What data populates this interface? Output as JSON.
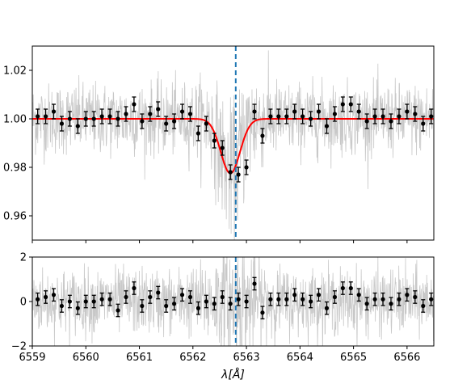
{
  "chart_data": [
    {
      "type": "line",
      "panel": "top",
      "xlim": [
        6559.0,
        6566.5
      ],
      "ylim": [
        0.95,
        1.03
      ],
      "yticks": [
        0.96,
        0.98,
        1.0,
        1.02
      ],
      "ytick_labels": [
        "0.96",
        "0.98",
        "1.00",
        "1.02"
      ],
      "xticks": [
        6559,
        6560,
        6561,
        6562,
        6563,
        6564,
        6565,
        6566
      ],
      "reference_line": {
        "x": 6562.8,
        "style": "dashed",
        "color": "#1f77b4"
      },
      "model": {
        "name": "",
        "color": "#ff0000",
        "baseline": 1.0,
        "depth": 0.0225,
        "center": 6562.7,
        "sigma": 0.18
      },
      "binned": {
        "color": "#000000",
        "x": [
          6559.1,
          6559.25,
          6559.4,
          6559.55,
          6559.7,
          6559.85,
          6560.0,
          6560.15,
          6560.3,
          6560.45,
          6560.6,
          6560.75,
          6560.9,
          6561.05,
          6561.2,
          6561.35,
          6561.5,
          6561.65,
          6561.8,
          6561.95,
          6562.1,
          6562.25,
          6562.4,
          6562.55,
          6562.7,
          6562.85,
          6563.0,
          6563.15,
          6563.3,
          6563.45,
          6563.6,
          6563.75,
          6563.9,
          6564.05,
          6564.2,
          6564.35,
          6564.5,
          6564.65,
          6564.8,
          6564.95,
          6565.1,
          6565.25,
          6565.4,
          6565.55,
          6565.7,
          6565.85,
          6566.0,
          6566.15,
          6566.3,
          6566.45
        ],
        "y": [
          1.001,
          1.001,
          1.003,
          0.998,
          1.0,
          0.997,
          1.0,
          1.0,
          1.001,
          1.001,
          1.0,
          1.002,
          1.006,
          0.999,
          1.002,
          1.004,
          0.998,
          0.999,
          1.003,
          1.002,
          0.994,
          0.998,
          0.991,
          0.988,
          0.978,
          0.977,
          0.98,
          1.003,
          0.993,
          1.001,
          1.001,
          1.001,
          1.003,
          1.001,
          1.0,
          1.003,
          0.997,
          1.002,
          1.006,
          1.006,
          1.003,
          0.999,
          1.001,
          1.001,
          0.999,
          1.001,
          1.003,
          1.002,
          0.998,
          1.001
        ],
        "yerr": 0.003
      },
      "noisy_spectrum": {
        "color": "#c8c8c8",
        "noise": 0.008
      }
    },
    {
      "type": "line",
      "panel": "bottom",
      "xlim": [
        6559.0,
        6566.5
      ],
      "ylim": [
        -2,
        2
      ],
      "yticks": [
        -2,
        0,
        2
      ],
      "ytick_labels": [
        "−2",
        "0",
        "2"
      ],
      "xticks": [
        6559,
        6560,
        6561,
        6562,
        6563,
        6564,
        6565,
        6566
      ],
      "xtick_labels": [
        "6559",
        "6560",
        "6561",
        "6562",
        "6563",
        "6564",
        "6565",
        "6566"
      ],
      "xlabel": "λ[Å]",
      "reference_line": {
        "x": 6562.8,
        "style": "dashed",
        "color": "#1f77b4"
      },
      "binned": {
        "color": "#000000",
        "x": [
          6559.1,
          6559.25,
          6559.4,
          6559.55,
          6559.7,
          6559.85,
          6560.0,
          6560.15,
          6560.3,
          6560.45,
          6560.6,
          6560.75,
          6560.9,
          6561.05,
          6561.2,
          6561.35,
          6561.5,
          6561.65,
          6561.8,
          6561.95,
          6562.1,
          6562.25,
          6562.4,
          6562.55,
          6562.7,
          6562.85,
          6563.0,
          6563.15,
          6563.3,
          6563.45,
          6563.6,
          6563.75,
          6563.9,
          6564.05,
          6564.2,
          6564.35,
          6564.5,
          6564.65,
          6564.8,
          6564.95,
          6565.1,
          6565.25,
          6565.4,
          6565.55,
          6565.7,
          6565.85,
          6566.0,
          6566.15,
          6566.3,
          6566.45
        ],
        "y": [
          0.1,
          0.2,
          0.3,
          -0.2,
          0.0,
          -0.3,
          0.0,
          0.0,
          0.1,
          0.1,
          -0.4,
          0.2,
          0.6,
          -0.2,
          0.2,
          0.4,
          -0.2,
          -0.1,
          0.3,
          0.2,
          -0.3,
          0.0,
          -0.1,
          0.2,
          -0.1,
          0.1,
          0.0,
          0.8,
          -0.5,
          0.1,
          0.1,
          0.1,
          0.3,
          0.1,
          0.0,
          0.3,
          -0.3,
          0.2,
          0.6,
          0.6,
          0.3,
          -0.1,
          0.1,
          0.1,
          -0.1,
          0.1,
          0.3,
          0.2,
          -0.2,
          0.1
        ],
        "yerr": 0.28
      },
      "noisy_spectrum": {
        "color": "#c8c8c8",
        "noise": 0.8
      }
    }
  ]
}
